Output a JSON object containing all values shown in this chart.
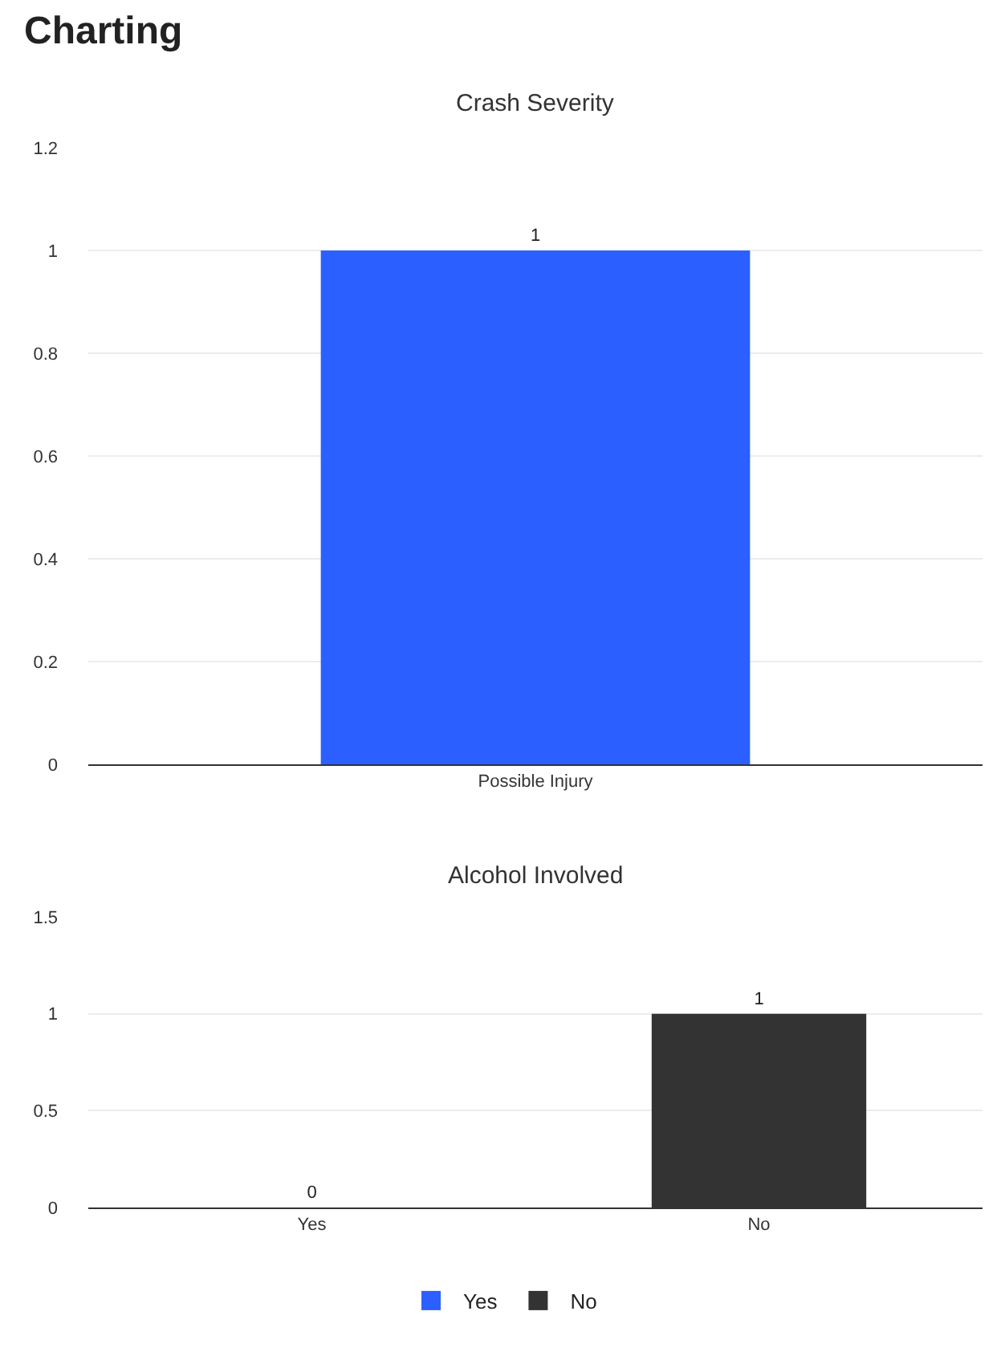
{
  "chart_data": [
    {
      "type": "bar",
      "title": "Crash Severity",
      "annotations": [
        "Charting"
      ],
      "categories": [
        "Possible Injury"
      ],
      "values": [
        1
      ],
      "color": "#2b5fff",
      "ylim": [
        0,
        1.2
      ],
      "yticks": [
        0,
        0.2,
        0.4,
        0.6,
        0.8,
        1,
        1.2
      ],
      "grid": "y",
      "data_labels": true
    },
    {
      "type": "bar",
      "title": "Alcohol Involved",
      "categories": [
        "Yes",
        "No"
      ],
      "series": [
        {
          "name": "Yes",
          "color": "#2b5fff",
          "values": [
            0,
            null
          ]
        },
        {
          "name": "No",
          "color": "#333333",
          "values": [
            null,
            1
          ]
        }
      ],
      "ylim": [
        0,
        1.5
      ],
      "yticks": [
        0,
        0.5,
        1,
        1.5
      ],
      "grid": "y",
      "data_labels": true,
      "legend": "bottom"
    }
  ]
}
